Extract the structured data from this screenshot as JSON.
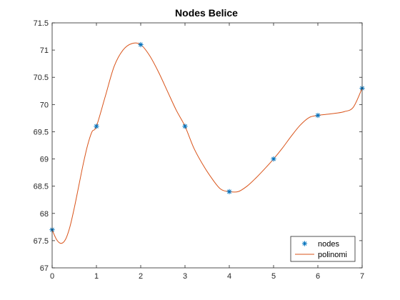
{
  "chart_data": {
    "type": "line",
    "title": "Nodes Belice",
    "xlabel": "",
    "ylabel": "",
    "xlim": [
      0,
      7
    ],
    "ylim": [
      67,
      71.5
    ],
    "x_ticks": [
      "0",
      "1",
      "2",
      "3",
      "4",
      "5",
      "6",
      "7"
    ],
    "y_ticks": [
      "67",
      "67.5",
      "68",
      "68.5",
      "69",
      "69.5",
      "70",
      "70.5",
      "71",
      "71.5"
    ],
    "grid": false,
    "legend_position": "bottom-right",
    "series": [
      {
        "name": "nodes",
        "style": "markers",
        "marker": "asterisk",
        "color": "#0072BD",
        "x": [
          0,
          1,
          2,
          3,
          4,
          5,
          6,
          7
        ],
        "y": [
          67.7,
          69.6,
          71.1,
          69.6,
          68.4,
          69.0,
          69.8,
          70.3
        ]
      },
      {
        "name": "polinomi",
        "style": "line",
        "color": "#D95319",
        "x": [
          0,
          0.1,
          0.2,
          0.3,
          0.4,
          0.5,
          0.6,
          0.7,
          0.8,
          0.9,
          1.0,
          1.2,
          1.4,
          1.6,
          1.8,
          2.0,
          2.2,
          2.4,
          2.6,
          2.8,
          3.0,
          3.2,
          3.4,
          3.6,
          3.8,
          4.0,
          4.2,
          4.4,
          4.6,
          4.8,
          5.0,
          5.2,
          5.4,
          5.6,
          5.8,
          6.0,
          6.2,
          6.4,
          6.6,
          6.8,
          7.0
        ],
        "y": [
          67.7,
          67.52,
          67.45,
          67.52,
          67.75,
          68.1,
          68.5,
          68.9,
          69.25,
          69.5,
          69.6,
          70.15,
          70.7,
          71.0,
          71.12,
          71.1,
          70.9,
          70.6,
          70.25,
          69.9,
          69.6,
          69.2,
          68.9,
          68.65,
          68.45,
          68.4,
          68.4,
          68.5,
          68.65,
          68.82,
          69.0,
          69.2,
          69.42,
          69.62,
          69.76,
          69.8,
          69.82,
          69.84,
          69.87,
          69.95,
          70.3
        ]
      }
    ]
  }
}
